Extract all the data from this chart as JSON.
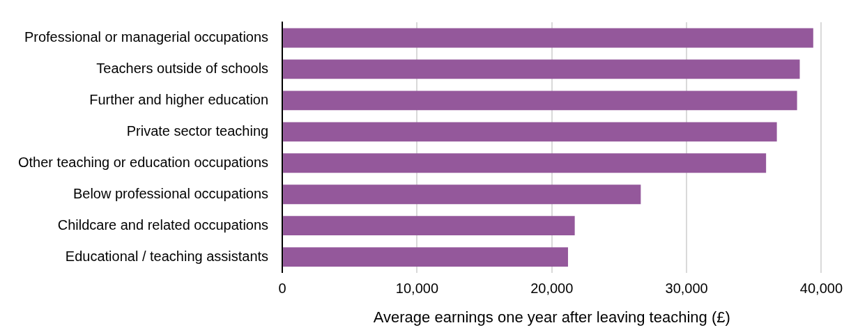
{
  "chart_data": {
    "type": "bar",
    "orientation": "horizontal",
    "xlabel": "Average earnings one year after leaving teaching (£)",
    "categories": [
      "Professional or managerial occupations",
      "Teachers outside of schools",
      "Further and higher education",
      "Private sector teaching",
      "Other teaching or education occupations",
      "Below professional occupations",
      "Childcare and related occupations",
      "Educational / teaching assistants"
    ],
    "values": [
      39400,
      38400,
      38200,
      36700,
      35900,
      26600,
      21700,
      21200
    ],
    "color": "#94589b",
    "xlim": [
      0,
      40000
    ],
    "xticks": [
      {
        "value": 0,
        "label": "0"
      },
      {
        "value": 10000,
        "label": "10,000"
      },
      {
        "value": 20000,
        "label": "20,000"
      },
      {
        "value": 30000,
        "label": "30,000"
      },
      {
        "value": 40000,
        "label": "40,000"
      }
    ],
    "grid": "x",
    "legend": false
  }
}
